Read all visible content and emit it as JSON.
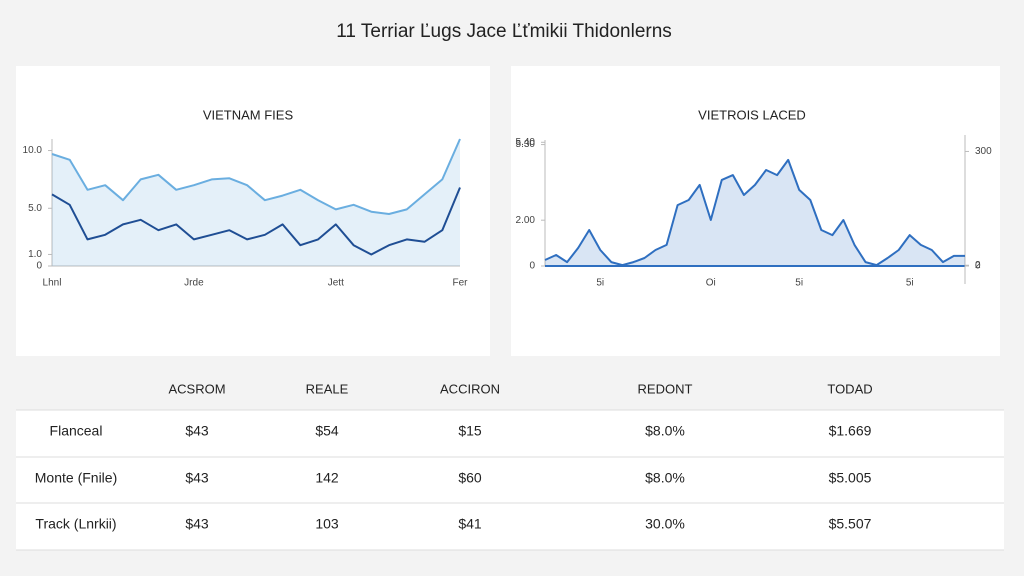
{
  "header": {
    "title": "11 Terriar Ľugs Jace Ľťmikii Thidonlerns"
  },
  "chart_data": [
    {
      "type": "line",
      "title": "VIETNAM FIES",
      "categories": [
        "Lhnl",
        null,
        null,
        null,
        null,
        null,
        null,
        null,
        "Jrde",
        null,
        null,
        null,
        null,
        null,
        null,
        null,
        "Jett",
        null,
        null,
        null,
        null,
        null,
        null,
        "Fer"
      ],
      "series": [
        {
          "color": "#6aaee0",
          "area": true,
          "values": [
            9.7,
            9.2,
            6.6,
            7.0,
            5.7,
            7.5,
            7.9,
            6.6,
            7.0,
            7.5,
            7.6,
            7.0,
            5.7,
            6.1,
            6.6,
            5.7,
            4.9,
            5.3,
            4.7,
            4.5,
            4.9,
            6.2,
            7.5,
            11.0
          ]
        },
        {
          "color": "#1f4e94",
          "area": false,
          "values": [
            6.2,
            5.3,
            2.3,
            2.7,
            3.6,
            4.0,
            3.1,
            3.6,
            2.3,
            2.7,
            3.1,
            2.3,
            2.7,
            3.6,
            1.8,
            2.3,
            3.6,
            1.8,
            1.0,
            1.8,
            2.3,
            2.1,
            3.1,
            6.8
          ]
        }
      ],
      "ylim": [
        0,
        11
      ],
      "yticks": [
        {
          "value": 10,
          "label": "10.0"
        },
        {
          "value": 5,
          "label": "5.0"
        },
        {
          "value": 1,
          "label": "1.0"
        },
        0
      ]
    },
    {
      "type": "line",
      "title": "VIETROIS LACED",
      "categories": [
        null,
        null,
        null,
        null,
        null,
        "5i",
        null,
        null,
        null,
        null,
        null,
        null,
        null,
        null,
        null,
        "Oi",
        null,
        null,
        null,
        null,
        null,
        null,
        null,
        "5i",
        null,
        null,
        null,
        null,
        null,
        null,
        null,
        null,
        null,
        "5i",
        null,
        null,
        null,
        null,
        null
      ],
      "series": [
        {
          "color": "#2f6fc0",
          "area": true,
          "values": [
            0.26,
            0.48,
            0.17,
            0.79,
            1.57,
            0.7,
            0.17,
            0.04,
            0.17,
            0.35,
            0.7,
            0.92,
            2.66,
            2.88,
            3.54,
            2.01,
            3.76,
            3.97,
            3.1,
            3.54,
            4.19,
            3.97,
            4.63,
            3.32,
            2.88,
            1.57,
            1.35,
            2.01,
            0.92,
            0.17,
            0.04,
            0.35,
            0.7,
            1.35,
            0.92,
            0.7,
            0.17,
            0.44,
            0.44
          ]
        }
      ],
      "ylim": [
        0,
        5.5
      ],
      "yticks": [
        {
          "value": 5.3,
          "label": "5.30"
        },
        {
          "value": 5.4,
          "label": "5.40"
        },
        {
          "value": 2,
          "label": "2.00"
        },
        0
      ],
      "y2lim": [
        0,
        330
      ],
      "y2ticks": [
        300,
        2,
        0
      ]
    }
  ],
  "table": {
    "headers": [
      "ACSROM",
      "REALE",
      "ACCIRON",
      "REDONT",
      "TODAD"
    ],
    "rows": [
      [
        "Flanceal",
        "$43",
        "$54",
        "$15",
        "$8.0%",
        "$1.669"
      ],
      [
        "Monte (Fnile)",
        "$43",
        "142",
        "$60",
        "$8.0%",
        "$5.005"
      ],
      [
        "Track (Lnrkii)",
        "$43",
        "103",
        "$41",
        "30.0%",
        "$5.507"
      ]
    ]
  }
}
